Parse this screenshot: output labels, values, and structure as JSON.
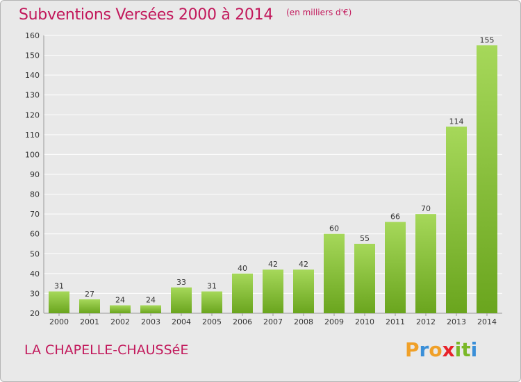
{
  "header": {
    "title": "Subventions Versées 2000 à 2014",
    "subtitle": "(en milliers d'€)"
  },
  "footer": {
    "place": "LA CHAPELLE-CHAUSSéE",
    "logo": {
      "letters": [
        "P",
        "r",
        "o",
        "x",
        "i",
        "t",
        "i"
      ],
      "colors": [
        "#f0a028",
        "#3a8fd8",
        "#f0a028",
        "#e8222a",
        "#7ab828",
        "#7ab828",
        "#3a8fd8"
      ]
    }
  },
  "colors": {
    "bar_light": "#a6d85a",
    "bar_dark": "#6aa51e",
    "text": "#c2185b",
    "axis_text": "#333333",
    "grid": "#ffffff",
    "plot_bg": "#e9e9e9"
  },
  "chart_data": {
    "type": "bar",
    "categories": [
      "2000",
      "2001",
      "2002",
      "2003",
      "2004",
      "2005",
      "2006",
      "2007",
      "2008",
      "2009",
      "2010",
      "2011",
      "2012",
      "2013",
      "2014"
    ],
    "values": [
      31,
      27,
      24,
      24,
      33,
      31,
      40,
      42,
      42,
      60,
      55,
      66,
      70,
      114,
      155
    ],
    "ylim": [
      20,
      160
    ],
    "yticks": [
      20,
      30,
      40,
      50,
      60,
      70,
      80,
      90,
      100,
      110,
      120,
      130,
      140,
      150,
      160
    ],
    "grid": true,
    "data_labels": true,
    "title": "Subventions Versées 2000 à 2014",
    "xlabel": "",
    "ylabel": ""
  }
}
